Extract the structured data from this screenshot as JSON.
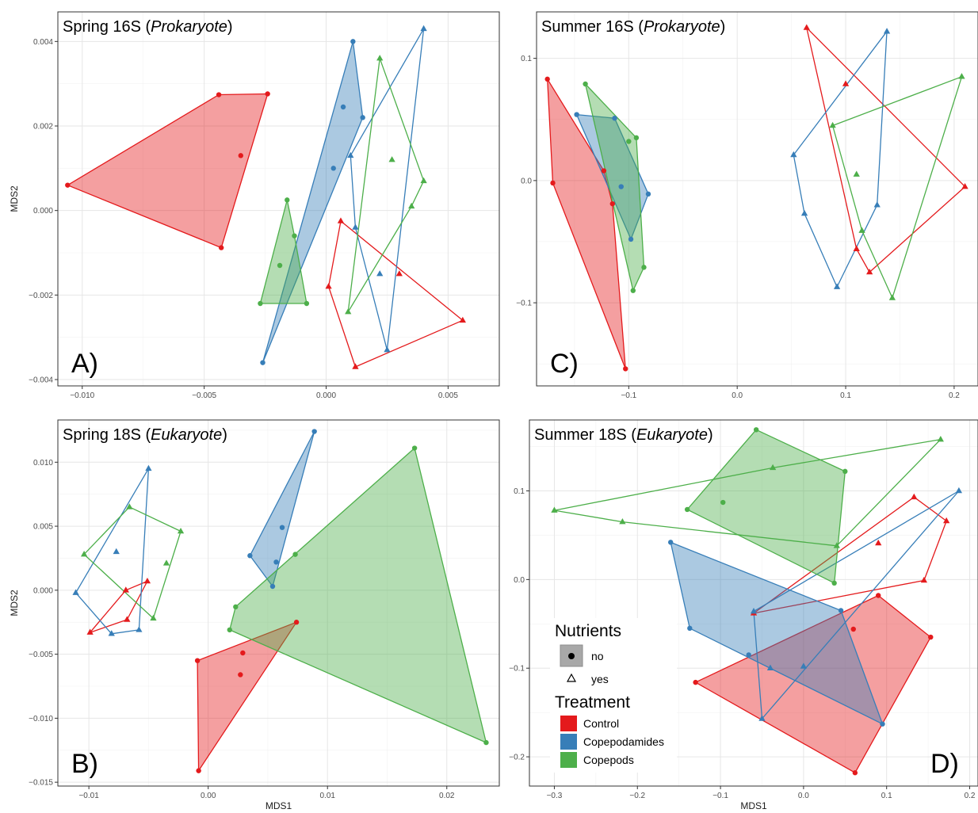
{
  "colors": {
    "Control": "#e41a1c",
    "Copepodamides": "#377eb8",
    "Copepods": "#4daf4a"
  },
  "legend": {
    "nutrients_title": "Nutrients",
    "nutrients": [
      {
        "label": "no",
        "shape": "circle"
      },
      {
        "label": "yes",
        "shape": "triangle"
      }
    ],
    "treatment_title": "Treatment",
    "treatments": [
      {
        "label": "Control",
        "color": "#e41a1c"
      },
      {
        "label": "Copepodamides",
        "color": "#377eb8"
      },
      {
        "label": "Copepods",
        "color": "#4daf4a"
      }
    ]
  },
  "chart_data": [
    {
      "id": "A",
      "type": "scatter",
      "title_prefix": "Spring 16S (",
      "title_italic": "Prokaryote",
      "title_suffix": ")",
      "letter": "A)",
      "xlabel": "",
      "ylabel": "MDS2",
      "xlim": [
        -0.011,
        0.0071
      ],
      "ylim": [
        -0.00415,
        0.0047
      ],
      "xticks": [
        -0.01,
        -0.005,
        0.0,
        0.005
      ],
      "xtick_labels": [
        "-0.010",
        "-0.005",
        "0.000",
        "0.005"
      ],
      "yticks": [
        -0.004,
        -0.002,
        0.0,
        0.002,
        0.004
      ],
      "ytick_labels": [
        "-0.004",
        "-0.002",
        "0.000",
        "0.002",
        "0.004"
      ],
      "grid": true,
      "series": [
        {
          "treatment": "Control",
          "nutrients": "no",
          "filled": true,
          "points": [
            [
              -0.0106,
              0.0006
            ],
            [
              -0.0044,
              0.00274
            ],
            [
              -0.0024,
              0.00276
            ],
            [
              -0.0043,
              -0.00088
            ],
            [
              -0.0035,
              0.0013
            ]
          ]
        },
        {
          "treatment": "Control",
          "nutrients": "yes",
          "filled": false,
          "points": [
            [
              0.0001,
              -0.0018
            ],
            [
              0.0012,
              -0.0037
            ],
            [
              0.0056,
              -0.0026
            ],
            [
              0.0006,
              -0.00025
            ],
            [
              0.003,
              -0.0015
            ]
          ]
        },
        {
          "treatment": "Copepodamides",
          "nutrients": "no",
          "filled": true,
          "points": [
            [
              -0.0026,
              -0.0036
            ],
            [
              0.0015,
              0.0022
            ],
            [
              0.0011,
              0.004
            ],
            [
              0.0003,
              0.001
            ],
            [
              0.0007,
              0.00245
            ]
          ]
        },
        {
          "treatment": "Copepodamides",
          "nutrients": "yes",
          "filled": false,
          "points": [
            [
              0.001,
              0.0013
            ],
            [
              0.0025,
              -0.0033
            ],
            [
              0.004,
              0.0043
            ],
            [
              0.0012,
              -0.0004
            ],
            [
              0.0022,
              -0.0015
            ]
          ]
        },
        {
          "treatment": "Copepods",
          "nutrients": "no",
          "filled": true,
          "points": [
            [
              -0.0019,
              -0.0013
            ],
            [
              -0.0016,
              0.00025
            ],
            [
              -0.0008,
              -0.0022
            ],
            [
              -0.0027,
              -0.0022
            ],
            [
              -0.0013,
              -0.0006
            ]
          ]
        },
        {
          "treatment": "Copepods",
          "nutrients": "yes",
          "filled": false,
          "points": [
            [
              0.0009,
              -0.0024
            ],
            [
              0.0022,
              0.0036
            ],
            [
              0.004,
              0.0007
            ],
            [
              0.0035,
              0.0001
            ],
            [
              0.0027,
              0.0012
            ]
          ]
        }
      ]
    },
    {
      "id": "C",
      "type": "scatter",
      "title_prefix": "Summer 16S (",
      "title_italic": "Prokaryote",
      "title_suffix": ")",
      "letter": "C)",
      "xlabel": "",
      "ylabel": "",
      "xlim": [
        -0.185,
        0.222
      ],
      "ylim": [
        -0.168,
        0.138
      ],
      "xticks": [
        -0.1,
        0.0,
        0.1,
        0.2
      ],
      "xtick_labels": [
        "-0.1",
        "0.0",
        "0.1",
        "0.2"
      ],
      "yticks": [
        -0.1,
        0.0,
        0.1
      ],
      "ytick_labels": [
        "-0.1",
        "0.0",
        "0.1"
      ],
      "grid": true,
      "series": [
        {
          "treatment": "Control",
          "nutrients": "no",
          "filled": true,
          "points": [
            [
              -0.175,
              0.083
            ],
            [
              -0.123,
              0.008
            ],
            [
              -0.103,
              -0.154
            ],
            [
              -0.17,
              -0.002
            ],
            [
              -0.115,
              -0.019
            ]
          ]
        },
        {
          "treatment": "Control",
          "nutrients": "yes",
          "filled": false,
          "points": [
            [
              0.064,
              0.125
            ],
            [
              0.21,
              -0.005
            ],
            [
              0.122,
              -0.075
            ],
            [
              0.11,
              -0.056
            ],
            [
              0.1,
              0.079
            ]
          ]
        },
        {
          "treatment": "Copepodamides",
          "nutrients": "no",
          "filled": true,
          "points": [
            [
              -0.148,
              0.054
            ],
            [
              -0.113,
              0.051
            ],
            [
              -0.082,
              -0.011
            ],
            [
              -0.098,
              -0.048
            ],
            [
              -0.107,
              -0.005
            ]
          ]
        },
        {
          "treatment": "Copepodamides",
          "nutrients": "yes",
          "filled": false,
          "points": [
            [
              0.052,
              0.021
            ],
            [
              0.138,
              0.122
            ],
            [
              0.129,
              -0.02
            ],
            [
              0.092,
              -0.087
            ],
            [
              0.062,
              -0.027
            ]
          ]
        },
        {
          "treatment": "Copepods",
          "nutrients": "no",
          "filled": true,
          "points": [
            [
              -0.14,
              0.079
            ],
            [
              -0.093,
              0.035
            ],
            [
              -0.086,
              -0.071
            ],
            [
              -0.096,
              -0.09
            ],
            [
              -0.1,
              0.032
            ]
          ]
        },
        {
          "treatment": "Copepods",
          "nutrients": "yes",
          "filled": false,
          "points": [
            [
              0.088,
              0.045
            ],
            [
              0.207,
              0.085
            ],
            [
              0.143,
              -0.096
            ],
            [
              0.115,
              -0.041
            ],
            [
              0.11,
              0.005
            ]
          ]
        }
      ]
    },
    {
      "id": "B",
      "type": "scatter",
      "title_prefix": "Spring 18S (",
      "title_italic": "Eukaryote",
      "title_suffix": ")",
      "letter": "B)",
      "xlabel": "MDS1",
      "ylabel": "MDS2",
      "xlim": [
        -0.0126,
        0.0244
      ],
      "ylim": [
        -0.0153,
        0.0133
      ],
      "xticks": [
        -0.01,
        0.0,
        0.01,
        0.02
      ],
      "xtick_labels": [
        "-0.01",
        "0.00",
        "0.01",
        "0.02"
      ],
      "yticks": [
        -0.015,
        -0.01,
        -0.005,
        0.0,
        0.005,
        0.01
      ],
      "ytick_labels": [
        "-0.015",
        "-0.010",
        "-0.005",
        "0.000",
        "0.005",
        "0.010"
      ],
      "grid": true,
      "series": [
        {
          "treatment": "Control",
          "nutrients": "no",
          "filled": true,
          "points": [
            [
              -0.0009,
              -0.0055
            ],
            [
              0.0074,
              -0.0025
            ],
            [
              -0.0008,
              -0.0141
            ],
            [
              0.0029,
              -0.0049
            ],
            [
              0.0027,
              -0.0066
            ]
          ]
        },
        {
          "treatment": "Control",
          "nutrients": "yes",
          "filled": false,
          "points": [
            [
              -0.0099,
              -0.0033
            ],
            [
              -0.0051,
              0.0007
            ],
            [
              -0.0069,
              0.0
            ],
            [
              -0.0068,
              -0.0023
            ]
          ]
        },
        {
          "treatment": "Copepodamides",
          "nutrients": "no",
          "filled": true,
          "points": [
            [
              0.0035,
              0.0027
            ],
            [
              0.0089,
              0.0124
            ],
            [
              0.0054,
              0.0003
            ],
            [
              0.0062,
              0.0049
            ],
            [
              0.0057,
              0.0022
            ]
          ]
        },
        {
          "treatment": "Copepodamides",
          "nutrients": "yes",
          "filled": false,
          "points": [
            [
              -0.0111,
              -0.0002
            ],
            [
              -0.005,
              0.0095
            ],
            [
              -0.0058,
              -0.0031
            ],
            [
              -0.0081,
              -0.0034
            ],
            [
              -0.0077,
              0.003
            ]
          ]
        },
        {
          "treatment": "Copepods",
          "nutrients": "no",
          "filled": true,
          "points": [
            [
              0.0018,
              -0.0031
            ],
            [
              0.0023,
              -0.0013
            ],
            [
              0.0073,
              0.0028
            ],
            [
              0.0173,
              0.0111
            ],
            [
              0.0233,
              -0.0119
            ]
          ]
        },
        {
          "treatment": "Copepods",
          "nutrients": "yes",
          "filled": false,
          "points": [
            [
              -0.0104,
              0.0028
            ],
            [
              -0.0066,
              0.0065
            ],
            [
              -0.0023,
              0.0046
            ],
            [
              -0.0046,
              -0.0022
            ],
            [
              -0.0035,
              0.0021
            ]
          ]
        }
      ]
    },
    {
      "id": "D",
      "type": "scatter",
      "title_prefix": "Summer 18S (",
      "title_italic": "Eukaryote",
      "title_suffix": ")",
      "letter": "D)",
      "xlabel": "MDS1",
      "ylabel": "",
      "xlim": [
        -0.33,
        0.21
      ],
      "ylim": [
        -0.233,
        0.18
      ],
      "xticks": [
        -0.3,
        -0.2,
        -0.1,
        0.0,
        0.1,
        0.2
      ],
      "xtick_labels": [
        "-0.3",
        "-0.2",
        "-0.1",
        "0.0",
        "0.1",
        "0.2"
      ],
      "yticks": [
        -0.2,
        -0.1,
        0.0,
        0.1
      ],
      "ytick_labels": [
        "-0.2",
        "-0.1",
        "0.0",
        "0.1"
      ],
      "grid": true,
      "series": [
        {
          "treatment": "Control",
          "nutrients": "no",
          "filled": true,
          "points": [
            [
              -0.13,
              -0.116
            ],
            [
              0.09,
              -0.018
            ],
            [
              0.153,
              -0.065
            ],
            [
              0.062,
              -0.218
            ],
            [
              0.06,
              -0.056
            ]
          ]
        },
        {
          "treatment": "Control",
          "nutrients": "yes",
          "filled": false,
          "points": [
            [
              -0.06,
              -0.038
            ],
            [
              0.133,
              0.093
            ],
            [
              0.172,
              0.066
            ],
            [
              0.145,
              -0.001
            ],
            [
              0.09,
              0.041
            ]
          ]
        },
        {
          "treatment": "Copepodamides",
          "nutrients": "no",
          "filled": true,
          "points": [
            [
              -0.16,
              0.042
            ],
            [
              0.045,
              -0.035
            ],
            [
              0.095,
              -0.163
            ],
            [
              -0.066,
              -0.085
            ],
            [
              -0.137,
              -0.055
            ]
          ]
        },
        {
          "treatment": "Copepodamides",
          "nutrients": "yes",
          "filled": false,
          "points": [
            [
              -0.06,
              -0.036
            ],
            [
              0.187,
              0.1
            ],
            [
              -0.05,
              -0.157
            ],
            [
              -0.04,
              -0.1
            ],
            [
              0.0,
              -0.098
            ]
          ]
        },
        {
          "treatment": "Copepods",
          "nutrients": "no",
          "filled": true,
          "points": [
            [
              -0.14,
              0.079
            ],
            [
              -0.057,
              0.169
            ],
            [
              0.05,
              0.122
            ],
            [
              0.037,
              -0.004
            ],
            [
              -0.097,
              0.087
            ]
          ]
        },
        {
          "treatment": "Copepods",
          "nutrients": "yes",
          "filled": false,
          "points": [
            [
              -0.3,
              0.078
            ],
            [
              0.165,
              0.158
            ],
            [
              0.04,
              0.038
            ],
            [
              -0.218,
              0.065
            ],
            [
              -0.037,
              0.126
            ]
          ]
        }
      ]
    }
  ]
}
